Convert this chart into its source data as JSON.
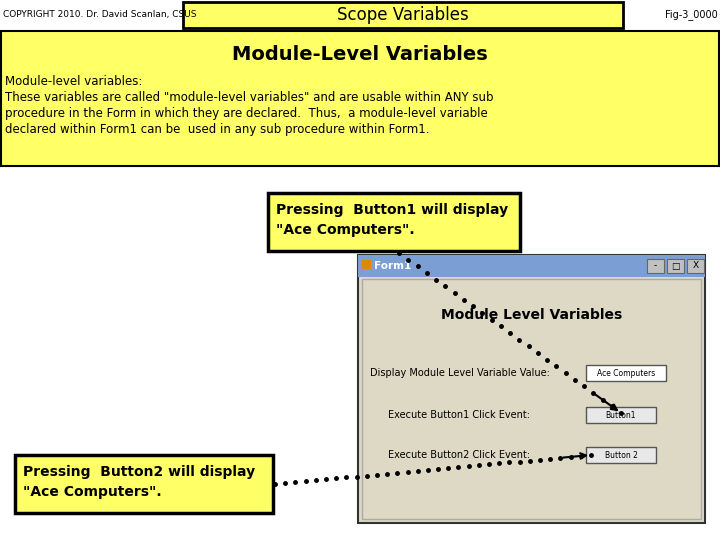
{
  "title": "Scope Variables",
  "copyright": "COPYRIGHT 2010. Dr. David Scanlan, CSUS",
  "fig_id": "Fig-3_0000",
  "section_title": "Module-Level Variables",
  "body_line1": "Module-level variables:",
  "body_line2": "These variables are called \"module-level variables\" and are usable within ANY sub",
  "body_line3": "procedure in the Form in which they are declared.  Thus,  a module-level variable",
  "body_line4": "declared within Form1 can be  used in any sub procedure within Form1.",
  "callout1_line1": "Pressing  Button1 will display",
  "callout1_line2": "\"Ace Computers\".",
  "callout2_line1": "Pressing  Button2 will display",
  "callout2_line2": "\"Ace Computers\".",
  "form_title": "Form1",
  "form_label": "Module Level Variables",
  "form_row1": "Display Module Level Variable Value:",
  "form_row2": "Execute Button1 Click Event:",
  "form_row3": "Execute Button2 Click Event:",
  "form_btn1": "Ace Computers",
  "form_btn2": "Button1",
  "form_btn3": "Button 2",
  "bg_color": "#ffffff",
  "yellow_bg": "#ffff66",
  "header_bg": "#ffff66",
  "callout_bg": "#ffff66",
  "form_bg": "#ddd9c4",
  "form_title_bg": "#7b9fd4"
}
